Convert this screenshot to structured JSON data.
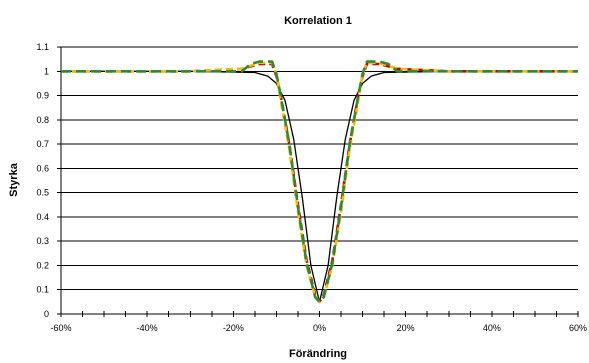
{
  "chart_data": {
    "type": "line",
    "title": "Korrelation 1",
    "xlabel": "Förändring",
    "ylabel": "Styrka",
    "xlim": [
      -0.6,
      0.6
    ],
    "ylim": [
      0,
      1.1
    ],
    "x_ticks": [
      -0.6,
      -0.4,
      -0.2,
      0,
      0.2,
      0.4,
      0.6
    ],
    "x_tick_labels": [
      "-60%",
      "-40%",
      "-20%",
      "0%",
      "20%",
      "40%",
      "60%"
    ],
    "y_ticks": [
      0,
      0.1,
      0.2,
      0.3,
      0.4,
      0.5,
      0.6,
      0.7,
      0.8,
      0.9,
      1,
      1.1
    ],
    "y_tick_labels": [
      "0",
      "0.1",
      "0.2",
      "0.3",
      "0.4",
      "0.5",
      "0.6",
      "0.7",
      "0.8",
      "0.9",
      "1",
      "1.1"
    ],
    "grid": "horizontal",
    "legend": "none",
    "series": [
      {
        "color": "#000000",
        "style": "solid",
        "x": [
          -0.6,
          -0.3,
          -0.15,
          -0.12,
          -0.1,
          -0.08,
          -0.06,
          -0.04,
          -0.02,
          0,
          0.02,
          0.04,
          0.06,
          0.08,
          0.1,
          0.12,
          0.15,
          0.3,
          0.6
        ],
        "y": [
          1,
          1,
          0.995,
          0.98,
          0.95,
          0.88,
          0.72,
          0.48,
          0.2,
          0.05,
          0.2,
          0.48,
          0.72,
          0.88,
          0.95,
          0.98,
          0.995,
          1,
          1
        ]
      },
      {
        "color": "#c00000",
        "style": "dash",
        "x": [
          -0.6,
          -0.3,
          -0.18,
          -0.14,
          -0.11,
          -0.1,
          -0.09,
          -0.07,
          -0.05,
          -0.03,
          -0.01,
          0,
          0.01,
          0.03,
          0.05,
          0.07,
          0.09,
          0.1,
          0.11,
          0.14,
          0.18,
          0.3,
          0.6
        ],
        "y": [
          1,
          1,
          1.01,
          1.03,
          1.03,
          0.98,
          0.9,
          0.7,
          0.45,
          0.22,
          0.08,
          0.05,
          0.08,
          0.22,
          0.45,
          0.7,
          0.9,
          0.98,
          1.03,
          1.03,
          1.01,
          1,
          1
        ]
      },
      {
        "color": "#f0c000",
        "style": "dash",
        "x": [
          -0.6,
          -0.3,
          -0.18,
          -0.14,
          -0.11,
          -0.1,
          -0.09,
          -0.07,
          -0.05,
          -0.03,
          -0.01,
          0,
          0.01,
          0.03,
          0.05,
          0.07,
          0.09,
          0.1,
          0.11,
          0.14,
          0.18,
          0.3,
          0.6
        ],
        "y": [
          1,
          1,
          1.01,
          1.035,
          1.035,
          0.99,
          0.88,
          0.68,
          0.42,
          0.2,
          0.07,
          0.05,
          0.07,
          0.2,
          0.42,
          0.68,
          0.88,
          0.99,
          1.035,
          1.035,
          1.01,
          1,
          1
        ]
      },
      {
        "color": "#2e8b2e",
        "style": "dash",
        "x": [
          -0.6,
          -0.3,
          -0.18,
          -0.16,
          -0.14,
          -0.11,
          -0.1,
          -0.09,
          -0.07,
          -0.05,
          -0.03,
          -0.01,
          0,
          0.01,
          0.03,
          0.05,
          0.07,
          0.09,
          0.1,
          0.11,
          0.14,
          0.16,
          0.18,
          0.3,
          0.6
        ],
        "y": [
          1,
          1,
          1.0,
          1.03,
          1.04,
          1.04,
          0.99,
          0.9,
          0.7,
          0.44,
          0.21,
          0.07,
          0.05,
          0.07,
          0.21,
          0.44,
          0.7,
          0.9,
          0.99,
          1.04,
          1.04,
          1.03,
          1.0,
          1,
          1
        ]
      }
    ]
  }
}
